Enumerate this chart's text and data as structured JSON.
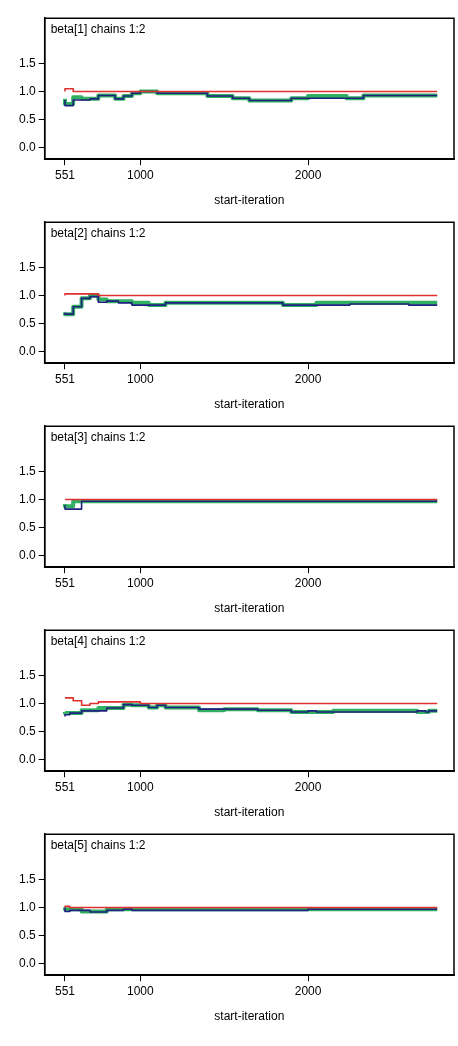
{
  "chart_data": [
    {
      "type": "step",
      "title": "beta[1] chains 1:2",
      "xlabel": "start-iteration",
      "xlim": [
        430,
        2870
      ],
      "ylim": [
        -0.2,
        2.3
      ],
      "xticks": [
        551,
        1000,
        2000
      ],
      "yticks": [
        {
          "value": 0,
          "label": "0.0"
        },
        {
          "value": 0.5,
          "label": "0.5"
        },
        {
          "value": 1,
          "label": "1.0"
        },
        {
          "value": 1.5,
          "label": "1.5"
        }
      ],
      "grid": false,
      "legend": false,
      "marker": "none",
      "series": [
        {
          "color": "#30b060",
          "x": [
            551,
            600,
            650,
            700,
            750,
            850,
            900,
            950,
            1000,
            1100,
            1200,
            1400,
            1450,
            1550,
            1650,
            1900,
            2000,
            2230,
            2330,
            2650,
            2770
          ],
          "values": [
            0.87,
            0.78,
            0.9,
            0.87,
            0.87,
            0.93,
            0.87,
            0.92,
            0.97,
            1.0,
            0.97,
            0.97,
            0.92,
            0.92,
            0.88,
            0.84,
            0.88,
            0.92,
            0.88,
            0.93,
            0.93
          ]
        },
        {
          "color": "#202080",
          "x": [
            551,
            600,
            650,
            700,
            750,
            850,
            900,
            950,
            1000,
            1100,
            1200,
            1400,
            1450,
            1550,
            1650,
            1900,
            2000,
            2230,
            2330,
            2650,
            2770
          ],
          "values": [
            0.85,
            0.75,
            0.85,
            0.85,
            0.87,
            0.93,
            0.87,
            0.92,
            0.97,
            1.0,
            0.97,
            0.97,
            0.92,
            0.92,
            0.88,
            0.84,
            0.88,
            0.88,
            0.88,
            0.93,
            0.93
          ]
        },
        {
          "color": "#e03030",
          "x": [
            551,
            600,
            650,
            700,
            2770
          ],
          "values": [
            1.0,
            1.05,
            1.0,
            1.0,
            1.0
          ]
        }
      ]
    },
    {
      "type": "step",
      "title": "beta[2] chains 1:2",
      "xlabel": "start-iteration",
      "xlim": [
        430,
        2870
      ],
      "ylim": [
        -0.2,
        2.3
      ],
      "xticks": [
        551,
        1000,
        2000
      ],
      "yticks": [
        {
          "value": 0,
          "label": "0.0"
        },
        {
          "value": 0.5,
          "label": "0.5"
        },
        {
          "value": 1,
          "label": "1.0"
        },
        {
          "value": 1.5,
          "label": "1.5"
        }
      ],
      "grid": false,
      "legend": false,
      "marker": "none",
      "series": [
        {
          "color": "#30b060",
          "x": [
            551,
            600,
            650,
            700,
            750,
            800,
            870,
            950,
            1050,
            1150,
            1850,
            2050,
            2250,
            2600,
            2700,
            2770
          ],
          "values": [
            0.7,
            0.67,
            0.8,
            0.95,
            1.0,
            0.93,
            0.9,
            0.9,
            0.87,
            0.83,
            0.87,
            0.83,
            0.87,
            0.87,
            0.87,
            0.87
          ]
        },
        {
          "color": "#202080",
          "x": [
            551,
            600,
            650,
            700,
            750,
            800,
            870,
            950,
            1050,
            1150,
            1850,
            2050,
            2250,
            2600,
            2700,
            2770
          ],
          "values": [
            0.7,
            0.67,
            0.8,
            0.95,
            0.98,
            0.88,
            0.9,
            0.87,
            0.83,
            0.83,
            0.87,
            0.83,
            0.83,
            0.85,
            0.83,
            0.83
          ]
        },
        {
          "color": "#e03030",
          "x": [
            551,
            750,
            870,
            2770
          ],
          "values": [
            1.0,
            1.03,
            1.0,
            1.0
          ]
        }
      ]
    },
    {
      "type": "step",
      "title": "beta[3] chains 1:2",
      "xlabel": "start-iteration",
      "xlim": [
        430,
        2870
      ],
      "ylim": [
        -0.2,
        2.3
      ],
      "xticks": [
        551,
        1000,
        2000
      ],
      "yticks": [
        {
          "value": 0,
          "label": "0.0"
        },
        {
          "value": 0.5,
          "label": "0.5"
        },
        {
          "value": 1,
          "label": "1.0"
        },
        {
          "value": 1.5,
          "label": "1.5"
        }
      ],
      "grid": false,
      "legend": false,
      "marker": "none",
      "series": [
        {
          "color": "#30b060",
          "x": [
            551,
            600,
            680,
            2770
          ],
          "values": [
            0.92,
            0.88,
            0.97,
            0.97
          ]
        },
        {
          "color": "#202080",
          "x": [
            551,
            580,
            650,
            680,
            2770
          ],
          "values": [
            0.9,
            0.83,
            0.83,
            0.97,
            0.97
          ]
        },
        {
          "color": "#e03030",
          "x": [
            551,
            2770
          ],
          "values": [
            1.0,
            1.0
          ]
        }
      ]
    },
    {
      "type": "step",
      "title": "beta[4] chains 1:2",
      "xlabel": "start-iteration",
      "xlim": [
        430,
        2870
      ],
      "ylim": [
        -0.2,
        2.3
      ],
      "xticks": [
        551,
        1000,
        2000
      ],
      "yticks": [
        {
          "value": 0,
          "label": "0.0"
        },
        {
          "value": 0.5,
          "label": "0.5"
        },
        {
          "value": 1,
          "label": "1.0"
        },
        {
          "value": 1.5,
          "label": "1.5"
        }
      ],
      "grid": false,
      "legend": false,
      "marker": "none",
      "series": [
        {
          "color": "#30b060",
          "x": [
            551,
            650,
            750,
            900,
            950,
            1050,
            1100,
            1150,
            1350,
            1500,
            1700,
            1900,
            2000,
            2050,
            2150,
            2650,
            2720,
            2770
          ],
          "values": [
            0.85,
            0.83,
            0.88,
            0.92,
            0.98,
            0.97,
            0.93,
            0.97,
            0.93,
            0.88,
            0.9,
            0.88,
            0.85,
            0.85,
            0.85,
            0.87,
            0.85,
            0.87
          ]
        },
        {
          "color": "#202080",
          "x": [
            551,
            580,
            650,
            800,
            900,
            950,
            1050,
            1100,
            1150,
            1350,
            1450,
            1700,
            1900,
            2000,
            2050,
            2150,
            2650,
            2700,
            2720,
            2770
          ],
          "values": [
            0.77,
            0.8,
            0.83,
            0.87,
            0.92,
            0.98,
            0.97,
            0.93,
            0.97,
            0.93,
            0.9,
            0.9,
            0.88,
            0.85,
            0.87,
            0.85,
            0.85,
            0.87,
            0.85,
            0.87
          ]
        },
        {
          "color": "#e03030",
          "x": [
            551,
            600,
            650,
            700,
            750,
            1000,
            1050,
            2770
          ],
          "values": [
            1.1,
            1.1,
            1.05,
            0.97,
            1.0,
            1.03,
            1.0,
            1.0
          ]
        }
      ]
    },
    {
      "type": "step",
      "title": "beta[5] chains 1:2",
      "xlabel": "start-iteration",
      "xlim": [
        430,
        2870
      ],
      "ylim": [
        -0.2,
        2.3
      ],
      "xticks": [
        551,
        1000,
        2000
      ],
      "yticks": [
        {
          "value": 0,
          "label": "0.0"
        },
        {
          "value": 0.5,
          "label": "0.5"
        },
        {
          "value": 1,
          "label": "1.0"
        },
        {
          "value": 1.5,
          "label": "1.5"
        }
      ],
      "grid": false,
      "legend": false,
      "marker": "none",
      "series": [
        {
          "color": "#30b060",
          "x": [
            551,
            580,
            650,
            800,
            950,
            2770
          ],
          "values": [
            1.0,
            0.97,
            0.97,
            0.93,
            0.97,
            0.97
          ]
        },
        {
          "color": "#202080",
          "x": [
            551,
            580,
            700,
            800,
            900,
            950,
            2000,
            2050,
            2770
          ],
          "values": [
            1.0,
            0.93,
            0.95,
            0.92,
            0.95,
            0.97,
            0.95,
            0.97,
            0.97
          ]
        },
        {
          "color": "#e03030",
          "x": [
            551,
            580,
            650,
            2770
          ],
          "values": [
            1.0,
            1.02,
            1.0,
            1.0
          ]
        }
      ]
    }
  ]
}
